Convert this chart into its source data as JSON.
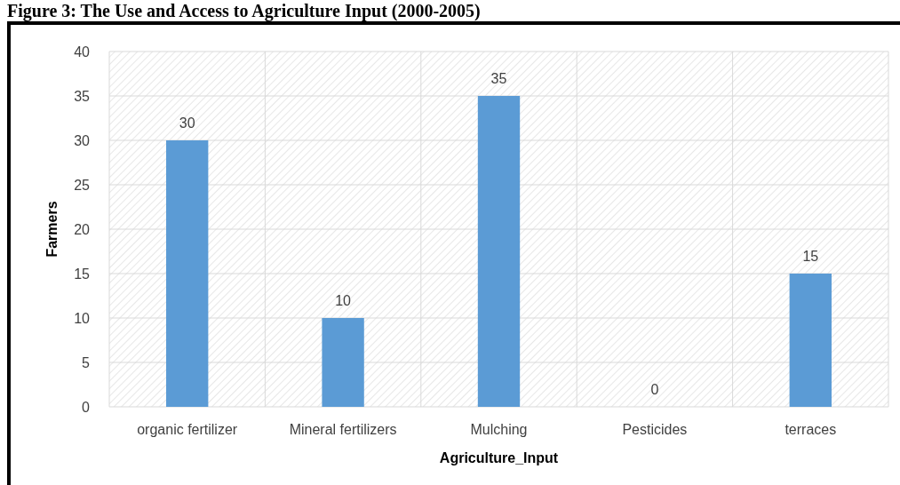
{
  "chart_data": {
    "type": "bar",
    "title": "Figure 3: The Use and Access to Agriculture Input (2000-2005)",
    "xlabel": "Agriculture_Input",
    "ylabel": "Farmers",
    "categories": [
      "organic fertilizer",
      "Mineral fertilizers",
      "Mulching",
      "Pesticides",
      "terraces"
    ],
    "values": [
      30,
      10,
      35,
      0,
      15
    ],
    "color": "#5b9bd5",
    "ylim": [
      0,
      40
    ],
    "yticks": [
      0,
      5,
      10,
      15,
      20,
      25,
      30,
      35,
      40
    ],
    "grid": true,
    "data_labels": true
  }
}
